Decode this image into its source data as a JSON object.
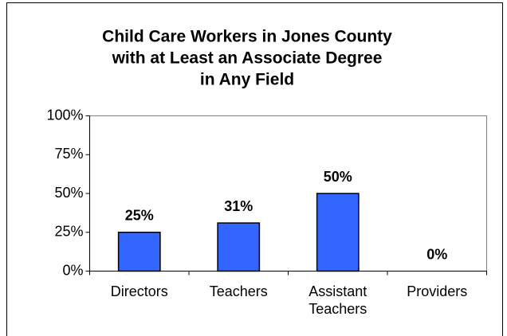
{
  "chart_data": {
    "type": "bar",
    "title": [
      "Child Care Workers in Jones County",
      "with at Least an Associate Degree",
      "in Any Field"
    ],
    "categories": [
      "Directors",
      "Teachers",
      "Assistant Teachers",
      "Providers"
    ],
    "values": [
      25,
      31,
      50,
      0
    ],
    "value_labels": [
      "25%",
      "31%",
      "50%",
      "0%"
    ],
    "color": "#3366ff",
    "ylim": [
      0,
      100
    ],
    "yticks": [
      {
        "value": 0,
        "label": "0%"
      },
      {
        "value": 25,
        "label": "25%"
      },
      {
        "value": 50,
        "label": "50%"
      },
      {
        "value": 75,
        "label": "75%"
      },
      {
        "value": 100,
        "label": "100%"
      }
    ],
    "grid": false
  }
}
